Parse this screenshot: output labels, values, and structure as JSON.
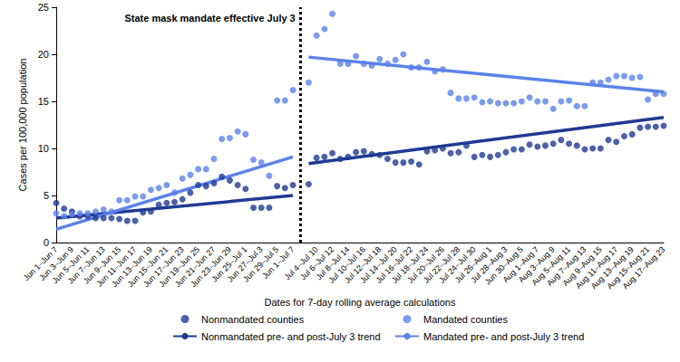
{
  "chart_data": {
    "type": "scatter",
    "y_label": "Cases per 100,000 population",
    "x_label": "Dates for 7-day rolling average calculations",
    "annotations": [
      {
        "text": "State mask mandate effective July 3"
      }
    ],
    "grid": false,
    "legend": "bottom",
    "ylim": [
      0,
      25
    ],
    "yticks": [
      0,
      5,
      10,
      15,
      20,
      25
    ],
    "categories": [
      "Jun 1–Jun 7",
      null,
      "Jun 3–Jun 9",
      null,
      "Jun 5–Jun 11",
      null,
      "Jun 7–Jun 13",
      null,
      "Jun 9–Jun 15",
      null,
      "Jun 11–Jun 17",
      null,
      "Jun 13–Jun 19",
      null,
      "Jun 15–Jun 21",
      null,
      "Jun 17–Jun 23",
      null,
      "Jun 19–Jun 25",
      null,
      "Jun 21–Jun 27",
      null,
      "Jun 23–Jun 29",
      null,
      "Jun 25–Jul 1",
      null,
      "Jun 27–Jul 3",
      null,
      "Jun 29–Jul 5",
      null,
      "Jun 1–Jul 7",
      null,
      null,
      "Jul 4–Jul 10",
      null,
      "Jul 6–Jul 12",
      null,
      "Jul 8–Jul 14",
      null,
      "Jul 10–Jul 16",
      null,
      "Jul 12–Jul 18",
      null,
      "Jul 14–Jul 20",
      null,
      "Jul 16–Jul 22",
      null,
      "Jul 18–Jul 24",
      null,
      "Jul 20–Jul 26",
      null,
      "Jul 22–Jul 28",
      null,
      "Jul 24–Jul 30",
      null,
      "Jul 26–Aug 1",
      null,
      "Jul 28–Aug 3",
      null,
      "Jun 30–Aug 5",
      null,
      "Aug 1–Aug 7",
      null,
      "Aug 3–Aug 9",
      null,
      "Aug 5–Aug 11",
      null,
      "Aug 7–Aug 13",
      null,
      "Aug 9–Aug 15",
      null,
      "Aug 11–Aug 17",
      null,
      "Aug 13–Aug 19",
      null,
      "Aug 15–Aug 21",
      null,
      "Aug 17–Aug 23"
    ],
    "series": [
      {
        "name": "Nonmandated counties",
        "type": "scatter",
        "marker": "circle",
        "color": "#1f3a93",
        "values": [
          4.2,
          3.6,
          3.3,
          2.8,
          2.8,
          2.6,
          2.6,
          2.6,
          2.5,
          2.3,
          2.3,
          3.2,
          3.3,
          4.0,
          4.2,
          4.3,
          4.6,
          5.3,
          6.1,
          6.0,
          6.3,
          7.0,
          6.6,
          6.1,
          5.7,
          3.7,
          3.7,
          3.7,
          6.0,
          5.8,
          6.1,
          null,
          6.2,
          9.0,
          9.1,
          9.5,
          8.9,
          9.1,
          9.6,
          9.7,
          9.4,
          9.3,
          8.9,
          8.5,
          8.5,
          8.6,
          8.3,
          9.7,
          9.8,
          10.0,
          9.5,
          9.6,
          10.3,
          9.1,
          9.3,
          9.1,
          9.3,
          9.6,
          9.9,
          9.9,
          10.4,
          10.2,
          10.3,
          10.5,
          10.9,
          10.5,
          10.3,
          9.9,
          10.0,
          10.0,
          10.9,
          10.7,
          11.3,
          11.5,
          12.2,
          12.3,
          12.3,
          12.4
        ]
      },
      {
        "name": "Mandated counties",
        "type": "scatter",
        "marker": "circle",
        "color": "#5b82ea",
        "values": [
          3.1,
          2.8,
          3.0,
          3.1,
          3.1,
          3.3,
          3.5,
          3.3,
          4.5,
          4.5,
          4.9,
          4.9,
          5.6,
          5.8,
          6.1,
          5.3,
          6.8,
          7.2,
          7.8,
          7.8,
          8.9,
          11.0,
          11.1,
          11.8,
          11.5,
          8.8,
          8.5,
          7.1,
          15.1,
          15.1,
          16.2,
          null,
          17.0,
          22.0,
          22.7,
          24.3,
          19.0,
          19.0,
          19.8,
          19.0,
          18.8,
          19.5,
          19.0,
          19.4,
          20.0,
          18.6,
          18.6,
          19.2,
          18.2,
          18.4,
          15.9,
          15.3,
          15.3,
          15.4,
          14.9,
          15.0,
          14.8,
          14.8,
          14.8,
          15.0,
          15.4,
          15.0,
          15.0,
          14.2,
          15.0,
          15.1,
          14.5,
          14.5,
          17.0,
          17.0,
          17.3,
          17.7,
          17.7,
          17.5,
          17.6,
          15.2,
          15.8,
          15.8
        ]
      },
      {
        "name": "Nonmandated pre- and post-July 3 trend",
        "type": "line",
        "line_style": "solid",
        "color": "#1f3a93",
        "values": [
          2.6,
          null,
          null,
          null,
          null,
          null,
          null,
          null,
          null,
          null,
          null,
          null,
          null,
          null,
          null,
          null,
          null,
          null,
          null,
          null,
          null,
          null,
          null,
          null,
          null,
          null,
          null,
          null,
          null,
          null,
          5.0,
          null,
          8.4,
          null,
          null,
          null,
          null,
          null,
          null,
          null,
          null,
          null,
          null,
          null,
          null,
          null,
          null,
          null,
          null,
          null,
          null,
          null,
          null,
          null,
          null,
          null,
          null,
          null,
          null,
          null,
          null,
          null,
          null,
          null,
          null,
          null,
          null,
          null,
          null,
          null,
          null,
          null,
          null,
          null,
          null,
          null,
          null,
          13.3
        ]
      },
      {
        "name": "Mandated pre- and post-July 3 trend",
        "type": "line",
        "line_style": "solid",
        "color": "#5b82ea",
        "values": [
          1.4,
          null,
          null,
          null,
          null,
          null,
          null,
          null,
          null,
          null,
          null,
          null,
          null,
          null,
          null,
          null,
          null,
          null,
          null,
          null,
          null,
          null,
          null,
          null,
          null,
          null,
          null,
          null,
          null,
          null,
          9.1,
          null,
          19.7,
          null,
          null,
          null,
          null,
          null,
          null,
          null,
          null,
          null,
          null,
          null,
          null,
          null,
          null,
          null,
          null,
          null,
          null,
          null,
          null,
          null,
          null,
          null,
          null,
          null,
          null,
          null,
          null,
          null,
          null,
          null,
          null,
          null,
          null,
          null,
          null,
          null,
          null,
          null,
          null,
          null,
          null,
          null,
          null,
          16.0
        ]
      }
    ]
  }
}
